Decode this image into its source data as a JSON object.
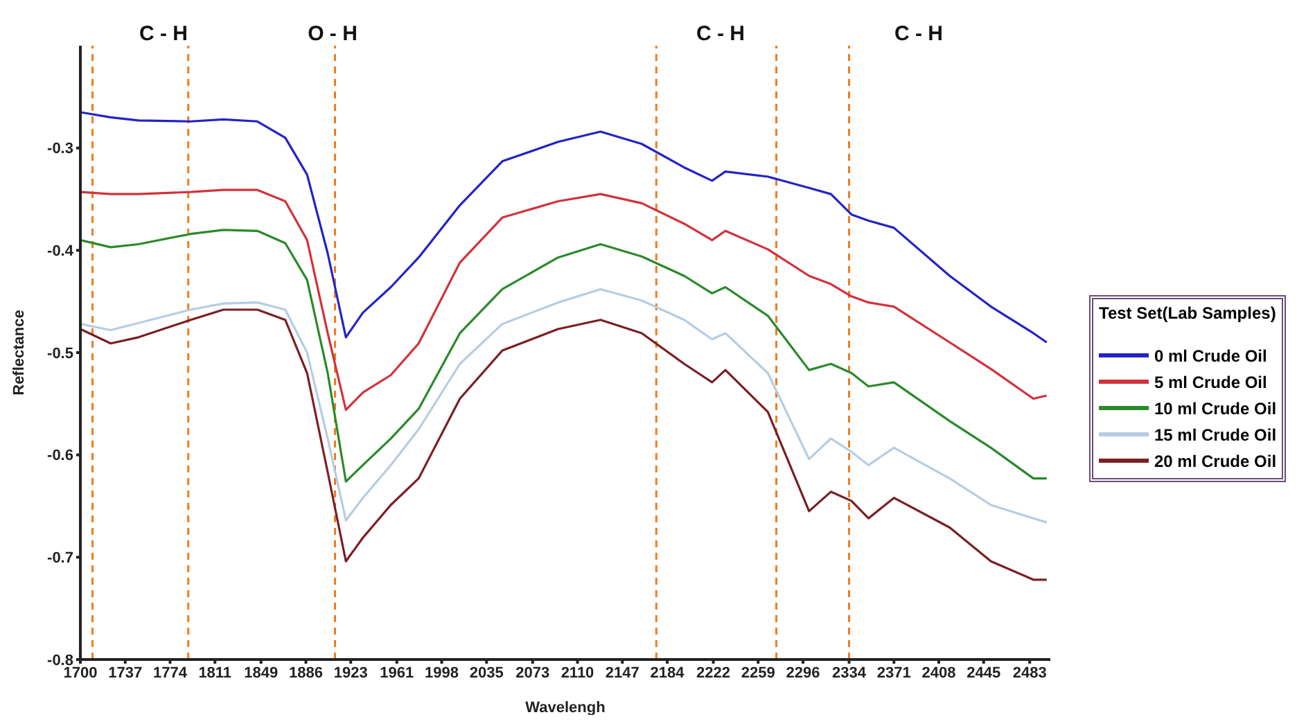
{
  "chart_data": {
    "type": "line",
    "xlabel": "Wavelengh",
    "ylabel": "Reflectance",
    "legend_title": "Test Set(Lab Samples)",
    "legend": "right",
    "grid": false,
    "marker": "none",
    "x": [
      1700,
      1725,
      1748,
      1791,
      1818,
      1846,
      1869,
      1887,
      1904,
      1919,
      1933,
      1956,
      1979,
      2013,
      2048,
      2094,
      2129,
      2163,
      2198,
      2221,
      2232,
      2267,
      2301,
      2319,
      2336,
      2350,
      2371,
      2417,
      2451,
      2486,
      2497
    ],
    "xlim": [
      1700,
      2500
    ],
    "xticks": [
      1700,
      1737,
      1774,
      1811,
      1849,
      1886,
      1923,
      1961,
      1998,
      2035,
      2073,
      2110,
      2147,
      2184,
      2222,
      2259,
      2296,
      2334,
      2371,
      2408,
      2445,
      2483
    ],
    "ylim": [
      -0.8,
      -0.2
    ],
    "yticks": [
      -0.8,
      -0.7,
      -0.6,
      -0.5,
      -0.4,
      -0.3
    ],
    "series": [
      {
        "name": "0 ml Crude Oil",
        "color": "#2323c8",
        "values": [
          -0.265,
          -0.27,
          -0.273,
          -0.274,
          -0.272,
          -0.274,
          -0.29,
          -0.326,
          -0.403,
          -0.485,
          -0.461,
          -0.436,
          -0.407,
          -0.356,
          -0.313,
          -0.294,
          -0.284,
          -0.296,
          -0.319,
          -0.332,
          -0.323,
          -0.328,
          -0.339,
          -0.345,
          -0.365,
          -0.371,
          -0.378,
          -0.425,
          -0.455,
          -0.481,
          -0.49
        ]
      },
      {
        "name": "5 ml Crude Oil",
        "color": "#d2323c",
        "values": [
          -0.343,
          -0.345,
          -0.345,
          -0.343,
          -0.341,
          -0.341,
          -0.352,
          -0.39,
          -0.481,
          -0.556,
          -0.539,
          -0.522,
          -0.491,
          -0.412,
          -0.368,
          -0.352,
          -0.345,
          -0.354,
          -0.374,
          -0.39,
          -0.381,
          -0.399,
          -0.425,
          -0.433,
          -0.445,
          -0.451,
          -0.455,
          -0.49,
          -0.516,
          -0.545,
          -0.542
        ]
      },
      {
        "name": "10 ml Crude Oil",
        "color": "#2a8a2a",
        "values": [
          -0.39,
          -0.397,
          -0.394,
          -0.384,
          -0.38,
          -0.381,
          -0.393,
          -0.429,
          -0.52,
          -0.626,
          -0.61,
          -0.584,
          -0.555,
          -0.481,
          -0.438,
          -0.407,
          -0.394,
          -0.406,
          -0.425,
          -0.442,
          -0.436,
          -0.464,
          -0.517,
          -0.511,
          -0.52,
          -0.533,
          -0.529,
          -0.567,
          -0.593,
          -0.623,
          -0.623
        ]
      },
      {
        "name": "15 ml Crude Oil",
        "color": "#b4cde4",
        "values": [
          -0.472,
          -0.478,
          -0.471,
          -0.458,
          -0.452,
          -0.451,
          -0.458,
          -0.5,
          -0.584,
          -0.664,
          -0.642,
          -0.61,
          -0.575,
          -0.511,
          -0.472,
          -0.451,
          -0.438,
          -0.449,
          -0.468,
          -0.487,
          -0.481,
          -0.52,
          -0.604,
          -0.584,
          -0.597,
          -0.61,
          -0.593,
          -0.623,
          -0.649,
          -0.662,
          -0.666
        ]
      },
      {
        "name": "20 ml Crude Oil",
        "color": "#7a1f24",
        "values": [
          -0.477,
          -0.491,
          -0.485,
          -0.468,
          -0.458,
          -0.458,
          -0.468,
          -0.52,
          -0.617,
          -0.704,
          -0.681,
          -0.649,
          -0.623,
          -0.545,
          -0.498,
          -0.477,
          -0.468,
          -0.481,
          -0.511,
          -0.529,
          -0.517,
          -0.558,
          -0.655,
          -0.636,
          -0.645,
          -0.662,
          -0.642,
          -0.671,
          -0.704,
          -0.722,
          -0.722
        ]
      }
    ],
    "ref_lines": [
      {
        "axis": "x",
        "value": 1710,
        "color": "#f07c1e",
        "line_style": "dashed"
      },
      {
        "axis": "x",
        "value": 1789,
        "color": "#f07c1e",
        "line_style": "dashed"
      },
      {
        "axis": "x",
        "value": 1910,
        "color": "#f07c1e",
        "line_style": "dashed"
      },
      {
        "axis": "x",
        "value": 2175,
        "color": "#f07c1e",
        "line_style": "dashed"
      },
      {
        "axis": "x",
        "value": 2274,
        "color": "#f07c1e",
        "line_style": "dashed"
      },
      {
        "axis": "x",
        "value": 2334,
        "color": "#f07c1e",
        "line_style": "dashed"
      }
    ],
    "annotations": [
      "C - H",
      "O - H",
      "C - H",
      "C - H"
    ]
  }
}
